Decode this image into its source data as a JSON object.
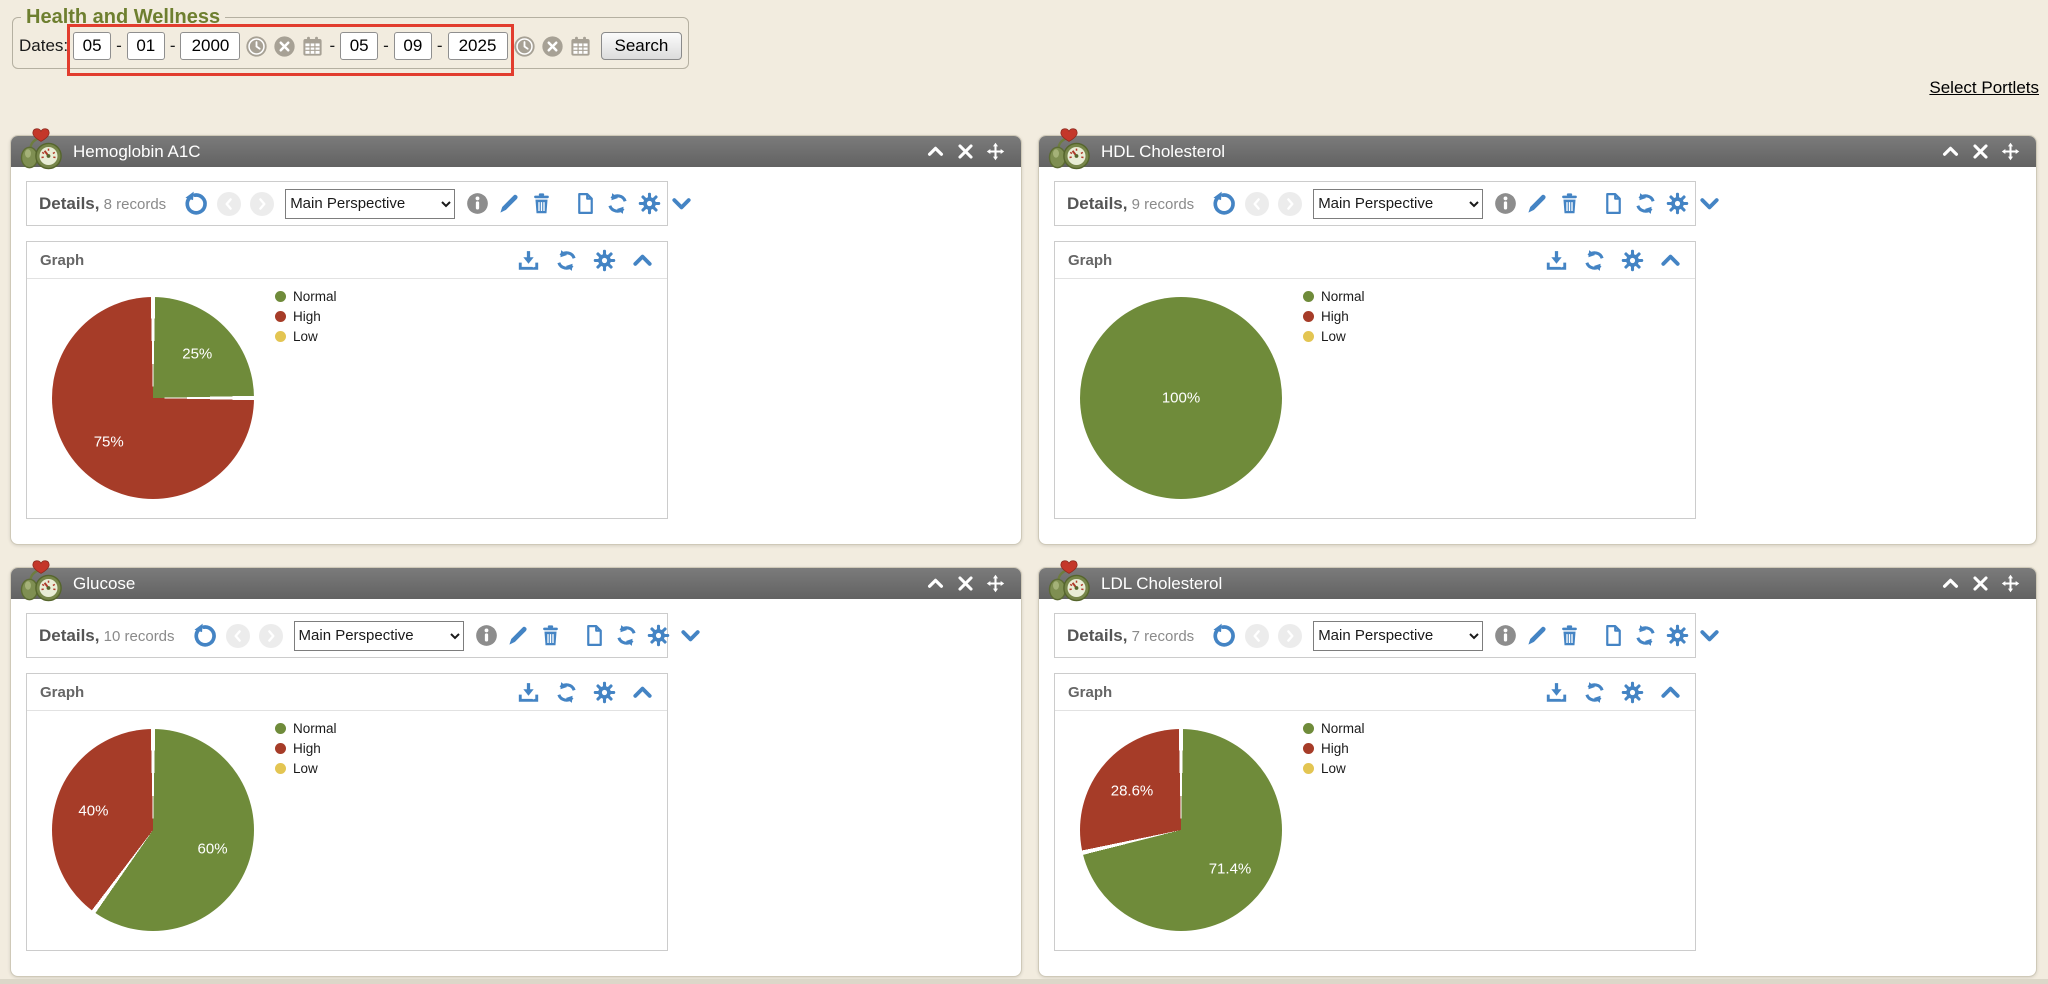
{
  "filter": {
    "title": "Health and Wellness",
    "dates_label": "Dates:",
    "separator": "-",
    "from": {
      "month": "05",
      "day": "01",
      "year": "2000"
    },
    "to": {
      "month": "05",
      "day": "09",
      "year": "2025"
    },
    "search_label": "Search"
  },
  "select_portlets_label": "Select Portlets",
  "colors": {
    "normal": "#6f8b3a",
    "high": "#a63c28",
    "low": "#e3c552",
    "toolbar_icon_blue": "#4484c4",
    "highlight_red": "#e23d2e",
    "header_gray": "#6b6b6b"
  },
  "icons": {
    "health-monitor-icon": "bp-monitor",
    "collapse-icon": "chevron-up",
    "expand-icon": "chevron-down",
    "close-icon": "x",
    "move-icon": "move",
    "undo-icon": "undo",
    "back-icon": "chevron-left",
    "forward-icon": "chevron-right",
    "info-icon": "info",
    "edit-icon": "pencil",
    "delete-icon": "trash",
    "document-icon": "document",
    "refresh-icon": "refresh",
    "settings-icon": "gear",
    "download-icon": "download",
    "clock-icon": "clock",
    "clear-icon": "x-circle",
    "calendar-icon": "calendar"
  },
  "portlets": [
    {
      "title": "Hemoglobin A1C",
      "details_label": "Details,",
      "records": "8 records",
      "perspective_selected": "Main Perspective",
      "graph_label": "Graph",
      "chart": {
        "type": "pie",
        "slices": [
          {
            "label": "Normal",
            "value": 25,
            "display": "25%",
            "color_key": "normal"
          },
          {
            "label": "High",
            "value": 75,
            "display": "75%",
            "color_key": "high"
          },
          {
            "label": "Low",
            "value": 0,
            "display": "",
            "color_key": "low"
          }
        ]
      }
    },
    {
      "title": "HDL Cholesterol",
      "details_label": "Details,",
      "records": "9 records",
      "perspective_selected": "Main Perspective",
      "graph_label": "Graph",
      "chart": {
        "type": "pie",
        "slices": [
          {
            "label": "Normal",
            "value": 100,
            "display": "100%",
            "color_key": "normal"
          },
          {
            "label": "High",
            "value": 0,
            "display": "",
            "color_key": "high"
          },
          {
            "label": "Low",
            "value": 0,
            "display": "",
            "color_key": "low"
          }
        ]
      }
    },
    {
      "title": "Glucose",
      "details_label": "Details,",
      "records": "10 records",
      "perspective_selected": "Main Perspective",
      "graph_label": "Graph",
      "chart": {
        "type": "pie",
        "slices": [
          {
            "label": "Normal",
            "value": 60,
            "display": "60%",
            "color_key": "normal"
          },
          {
            "label": "High",
            "value": 40,
            "display": "40%",
            "color_key": "high"
          },
          {
            "label": "Low",
            "value": 0,
            "display": "",
            "color_key": "low"
          }
        ]
      }
    },
    {
      "title": "LDL Cholesterol",
      "details_label": "Details,",
      "records": "7 records",
      "perspective_selected": "Main Perspective",
      "graph_label": "Graph",
      "chart": {
        "type": "pie",
        "slices": [
          {
            "label": "Normal",
            "value": 71.4,
            "display": "71.4%",
            "color_key": "normal"
          },
          {
            "label": "High",
            "value": 28.6,
            "display": "28.6%",
            "color_key": "high"
          },
          {
            "label": "Low",
            "value": 0,
            "display": "",
            "color_key": "low"
          }
        ]
      }
    }
  ],
  "chart_data": [
    {
      "type": "pie",
      "title": "Hemoglobin A1C",
      "labels": [
        "Normal",
        "High",
        "Low"
      ],
      "values": [
        25,
        75,
        0
      ],
      "colors": [
        "#6f8b3a",
        "#a63c28",
        "#e3c552"
      ],
      "legend_position": "right"
    },
    {
      "type": "pie",
      "title": "HDL Cholesterol",
      "labels": [
        "Normal",
        "High",
        "Low"
      ],
      "values": [
        100,
        0,
        0
      ],
      "colors": [
        "#6f8b3a",
        "#a63c28",
        "#e3c552"
      ],
      "legend_position": "right"
    },
    {
      "type": "pie",
      "title": "Glucose",
      "labels": [
        "Normal",
        "High",
        "Low"
      ],
      "values": [
        60,
        40,
        0
      ],
      "colors": [
        "#6f8b3a",
        "#a63c28",
        "#e3c552"
      ],
      "legend_position": "right"
    },
    {
      "type": "pie",
      "title": "LDL Cholesterol",
      "labels": [
        "Normal",
        "High",
        "Low"
      ],
      "values": [
        71.4,
        28.6,
        0
      ],
      "colors": [
        "#6f8b3a",
        "#a63c28",
        "#e3c552"
      ],
      "legend_position": "right"
    }
  ]
}
